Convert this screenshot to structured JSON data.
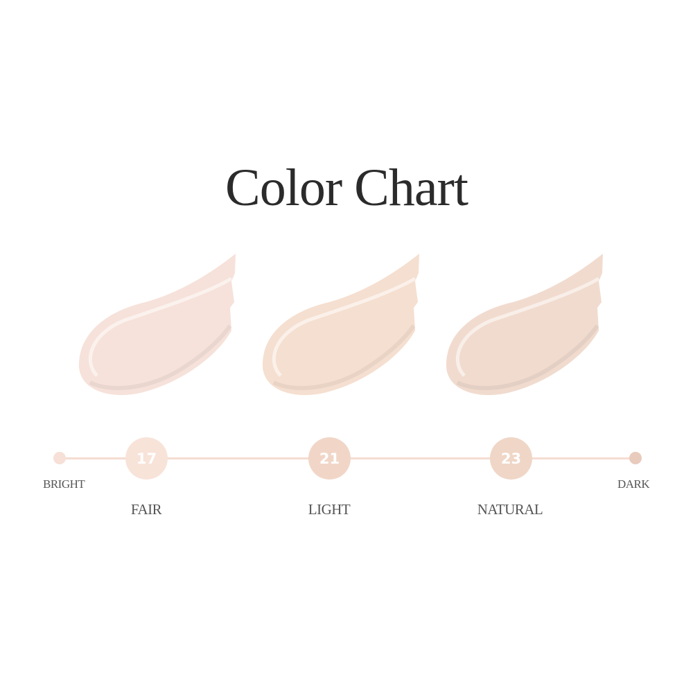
{
  "title": "Color Chart",
  "scale": {
    "start_label": "BRIGHT",
    "end_label": "DARK",
    "start_color": "#f6e0d7",
    "end_color": "#e8cbbd",
    "line_color": "#f5dcd1"
  },
  "shades": [
    {
      "number": "17",
      "name": "FAIR",
      "swatch_color": "#f6e2da",
      "circle_color": "#f8e3d9"
    },
    {
      "number": "21",
      "name": "LIGHT",
      "swatch_color": "#f5dfd0",
      "circle_color": "#f1d6c7"
    },
    {
      "number": "23",
      "name": "NATURAL",
      "swatch_color": "#f1dbcf",
      "circle_color": "#efd6c6"
    }
  ]
}
